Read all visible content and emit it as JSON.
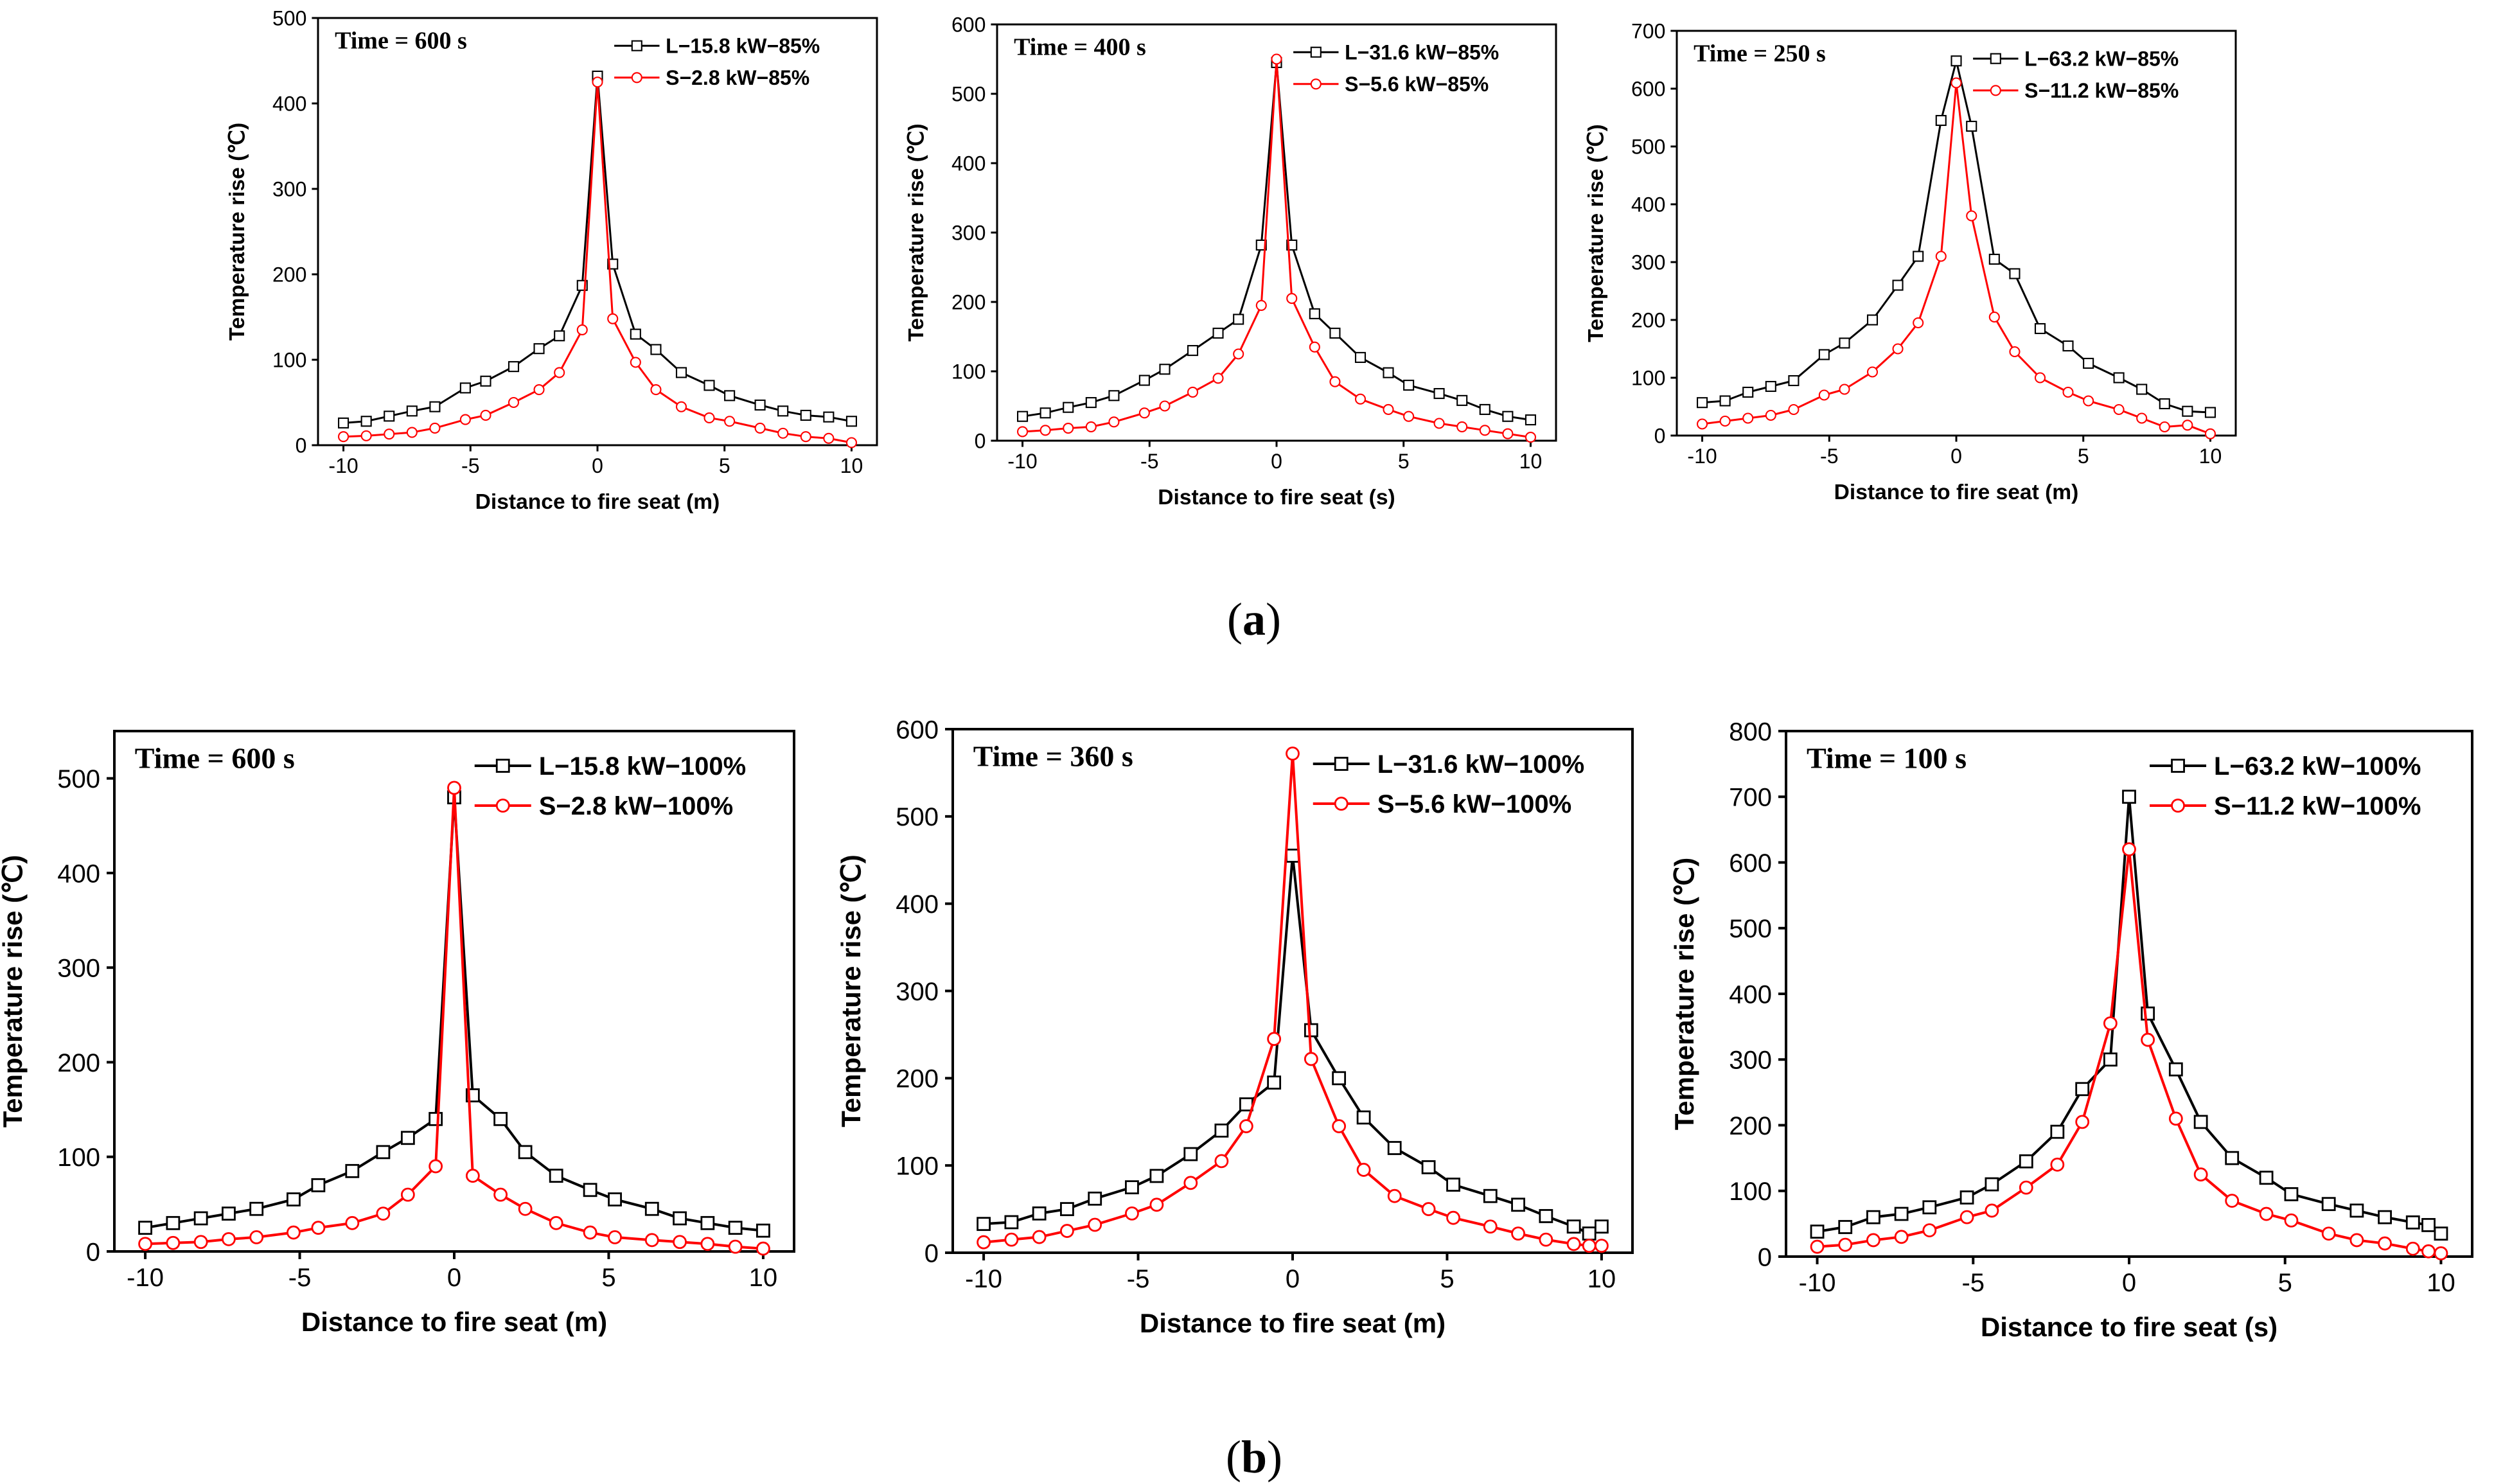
{
  "colors": {
    "series_L": "#000000",
    "series_S": "#ff0000"
  },
  "captions": [
    {
      "text_open": "(",
      "text_letter": "a",
      "text_close": ")"
    },
    {
      "text_open": "(",
      "text_letter": "b",
      "text_close": ")"
    }
  ],
  "chart_data": [
    {
      "type": "line",
      "title": "Time = 600 s",
      "xlabel": "Distance to fire seat (m)",
      "ylabel": "Temperature rise (℃)",
      "xlim": [
        -11,
        11
      ],
      "ylim": [
        0,
        500
      ],
      "xticks": [
        -10,
        -5,
        0,
        5,
        10
      ],
      "yticks": [
        0,
        100,
        200,
        300,
        400,
        500
      ],
      "legend_position": "top-right",
      "series": [
        {
          "name": "L−15.8 kW−85%",
          "marker": "square",
          "x": [
            -10,
            -9.1,
            -8.2,
            -7.3,
            -6.4,
            -5.2,
            -4.4,
            -3.3,
            -2.3,
            -1.5,
            -0.6,
            0,
            0.6,
            1.5,
            2.3,
            3.3,
            4.4,
            5.2,
            6.4,
            7.3,
            8.2,
            9.1,
            10
          ],
          "y": [
            26,
            28,
            34,
            40,
            45,
            67,
            75,
            92,
            113,
            128,
            187,
            432,
            212,
            130,
            112,
            85,
            70,
            58,
            47,
            40,
            35,
            33,
            28
          ]
        },
        {
          "name": "S−2.8 kW−85%",
          "marker": "circle",
          "x": [
            -10,
            -9.1,
            -8.2,
            -7.3,
            -6.4,
            -5.2,
            -4.4,
            -3.3,
            -2.3,
            -1.5,
            -0.6,
            0,
            0.6,
            1.5,
            2.3,
            3.3,
            4.4,
            5.2,
            6.4,
            7.3,
            8.2,
            9.1,
            10
          ],
          "y": [
            10,
            11,
            13,
            15,
            20,
            30,
            35,
            50,
            65,
            85,
            135,
            425,
            148,
            97,
            65,
            45,
            32,
            28,
            20,
            14,
            10,
            8,
            3
          ]
        }
      ]
    },
    {
      "type": "line",
      "title": "Time = 400 s",
      "xlabel": "Distance to fire seat (s)",
      "ylabel": "Temperature rise (℃)",
      "xlim": [
        -11,
        11
      ],
      "ylim": [
        0,
        600
      ],
      "xticks": [
        -10,
        -5,
        0,
        5,
        10
      ],
      "yticks": [
        0,
        100,
        200,
        300,
        400,
        500,
        600
      ],
      "legend_position": "top-right",
      "series": [
        {
          "name": "L−31.6 kW−85%",
          "marker": "square",
          "x": [
            -10,
            -9.1,
            -8.2,
            -7.3,
            -6.4,
            -5.2,
            -4.4,
            -3.3,
            -2.3,
            -1.5,
            -0.6,
            0,
            0.6,
            1.5,
            2.3,
            3.3,
            4.4,
            5.2,
            6.4,
            7.3,
            8.2,
            9.1,
            10
          ],
          "y": [
            35,
            40,
            48,
            55,
            65,
            87,
            103,
            130,
            155,
            175,
            282,
            545,
            282,
            183,
            155,
            120,
            98,
            80,
            68,
            58,
            45,
            35,
            30
          ]
        },
        {
          "name": "S−5.6 kW−85%",
          "marker": "circle",
          "x": [
            -10,
            -9.1,
            -8.2,
            -7.3,
            -6.4,
            -5.2,
            -4.4,
            -3.3,
            -2.3,
            -1.5,
            -0.6,
            0,
            0.6,
            1.5,
            2.3,
            3.3,
            4.4,
            5.2,
            6.4,
            7.3,
            8.2,
            9.1,
            10
          ],
          "y": [
            13,
            15,
            18,
            20,
            27,
            40,
            50,
            70,
            90,
            125,
            195,
            550,
            205,
            135,
            85,
            60,
            45,
            35,
            25,
            20,
            15,
            10,
            5
          ]
        }
      ]
    },
    {
      "type": "line",
      "title": "Time = 250 s",
      "xlabel": "Distance to fire seat (m)",
      "ylabel": "Temperature rise (℃)",
      "xlim": [
        -11,
        11
      ],
      "ylim": [
        0,
        700
      ],
      "xticks": [
        -10,
        -5,
        0,
        5,
        10
      ],
      "yticks": [
        0,
        100,
        200,
        300,
        400,
        500,
        600,
        700
      ],
      "legend_position": "top-right",
      "series": [
        {
          "name": "L−63.2 kW−85%",
          "marker": "square",
          "x": [
            -10,
            -9.1,
            -8.2,
            -7.3,
            -6.4,
            -5.2,
            -4.4,
            -3.3,
            -2.3,
            -1.5,
            -0.6,
            0,
            0.6,
            1.5,
            2.3,
            3.3,
            4.4,
            5.2,
            6.4,
            7.3,
            8.2,
            9.1,
            10
          ],
          "y": [
            57,
            60,
            75,
            85,
            95,
            140,
            160,
            200,
            260,
            310,
            545,
            648,
            535,
            305,
            280,
            185,
            155,
            125,
            100,
            80,
            55,
            42,
            40
          ]
        },
        {
          "name": "S−11.2 kW−85%",
          "marker": "circle",
          "x": [
            -10,
            -9.1,
            -8.2,
            -7.3,
            -6.4,
            -5.2,
            -4.4,
            -3.3,
            -2.3,
            -1.5,
            -0.6,
            0,
            0.6,
            1.5,
            2.3,
            3.3,
            4.4,
            5.2,
            6.4,
            7.3,
            8.2,
            9.1,
            10
          ],
          "y": [
            20,
            25,
            30,
            35,
            45,
            70,
            80,
            110,
            150,
            195,
            310,
            610,
            380,
            205,
            145,
            100,
            75,
            60,
            45,
            30,
            15,
            18,
            3
          ]
        }
      ]
    },
    {
      "type": "line",
      "title": "Time = 600 s",
      "xlabel": "Distance to fire seat (m)",
      "ylabel": "Temperature rise (℃)",
      "xlim": [
        -11,
        11
      ],
      "ylim": [
        0,
        550
      ],
      "xticks": [
        -10,
        -5,
        0,
        5,
        10
      ],
      "yticks": [
        0,
        100,
        200,
        300,
        400,
        500
      ],
      "legend_position": "top-right",
      "series": [
        {
          "name": "L−15.8 kW−100%",
          "marker": "square",
          "x": [
            -10,
            -9.1,
            -8.2,
            -7.3,
            -6.4,
            -5.2,
            -4.4,
            -3.3,
            -2.3,
            -1.5,
            -0.6,
            0,
            0.6,
            1.5,
            2.3,
            3.3,
            4.4,
            5.2,
            6.4,
            7.3,
            8.2,
            9.1,
            10
          ],
          "y": [
            25,
            30,
            35,
            40,
            45,
            55,
            70,
            85,
            105,
            120,
            140,
            480,
            165,
            140,
            105,
            80,
            65,
            55,
            45,
            35,
            30,
            25,
            22
          ]
        },
        {
          "name": "S−2.8 kW−100%",
          "marker": "circle",
          "x": [
            -10,
            -9.1,
            -8.2,
            -7.3,
            -6.4,
            -5.2,
            -4.4,
            -3.3,
            -2.3,
            -1.5,
            -0.6,
            0,
            0.6,
            1.5,
            2.3,
            3.3,
            4.4,
            5.2,
            6.4,
            7.3,
            8.2,
            9.1,
            10
          ],
          "y": [
            8,
            9,
            10,
            13,
            15,
            20,
            25,
            30,
            40,
            60,
            90,
            490,
            80,
            60,
            45,
            30,
            20,
            15,
            12,
            10,
            8,
            5,
            3
          ]
        }
      ]
    },
    {
      "type": "line",
      "title": "Time = 360 s",
      "xlabel": "Distance to fire seat (m)",
      "ylabel": "Temperature rise (℃)",
      "xlim": [
        -11,
        11
      ],
      "ylim": [
        0,
        600
      ],
      "xticks": [
        -10,
        -5,
        0,
        5,
        10
      ],
      "yticks": [
        0,
        100,
        200,
        300,
        400,
        500,
        600
      ],
      "legend_position": "top-right",
      "series": [
        {
          "name": "L−31.6 kW−100%",
          "marker": "square",
          "x": [
            -10,
            -9.1,
            -8.2,
            -7.3,
            -6.4,
            -5.2,
            -4.4,
            -3.3,
            -2.3,
            -1.5,
            -0.6,
            0,
            0.6,
            1.5,
            2.3,
            3.3,
            4.4,
            5.2,
            6.4,
            7.3,
            8.2,
            9.1,
            9.6,
            10
          ],
          "y": [
            33,
            35,
            45,
            50,
            62,
            75,
            88,
            113,
            140,
            170,
            195,
            455,
            255,
            200,
            155,
            120,
            98,
            78,
            65,
            55,
            42,
            30,
            22,
            30
          ]
        },
        {
          "name": "S−5.6 kW−100%",
          "marker": "circle",
          "x": [
            -10,
            -9.1,
            -8.2,
            -7.3,
            -6.4,
            -5.2,
            -4.4,
            -3.3,
            -2.3,
            -1.5,
            -0.6,
            0,
            0.6,
            1.5,
            2.3,
            3.3,
            4.4,
            5.2,
            6.4,
            7.3,
            8.2,
            9.1,
            9.6,
            10
          ],
          "y": [
            12,
            15,
            18,
            25,
            32,
            45,
            55,
            80,
            105,
            145,
            245,
            572,
            222,
            145,
            95,
            65,
            50,
            40,
            30,
            22,
            15,
            10,
            8,
            8
          ]
        }
      ]
    },
    {
      "type": "line",
      "title": "Time = 100 s",
      "xlabel": "Distance to fire seat (s)",
      "ylabel": "Temperature rise (℃)",
      "xlim": [
        -11,
        11
      ],
      "ylim": [
        0,
        800
      ],
      "xticks": [
        -10,
        -5,
        0,
        5,
        10
      ],
      "yticks": [
        0,
        100,
        200,
        300,
        400,
        500,
        600,
        700,
        800
      ],
      "legend_position": "top-right",
      "series": [
        {
          "name": "L−63.2 kW−100%",
          "marker": "square",
          "x": [
            -10,
            -9.1,
            -8.2,
            -7.3,
            -6.4,
            -5.2,
            -4.4,
            -3.3,
            -2.3,
            -1.5,
            -0.6,
            0,
            0.6,
            1.5,
            2.3,
            3.3,
            4.4,
            5.2,
            6.4,
            7.3,
            8.2,
            9.1,
            9.6,
            10
          ],
          "y": [
            38,
            45,
            60,
            65,
            75,
            90,
            110,
            145,
            190,
            255,
            300,
            700,
            370,
            285,
            205,
            150,
            120,
            95,
            80,
            70,
            60,
            52,
            48,
            35
          ]
        },
        {
          "name": "S−11.2 kW−100%",
          "marker": "circle",
          "x": [
            -10,
            -9.1,
            -8.2,
            -7.3,
            -6.4,
            -5.2,
            -4.4,
            -3.3,
            -2.3,
            -1.5,
            -0.6,
            0,
            0.6,
            1.5,
            2.3,
            3.3,
            4.4,
            5.2,
            6.4,
            7.3,
            8.2,
            9.1,
            9.6,
            10
          ],
          "y": [
            15,
            18,
            25,
            30,
            40,
            60,
            70,
            105,
            140,
            205,
            355,
            620,
            330,
            210,
            125,
            85,
            65,
            55,
            35,
            25,
            20,
            12,
            8,
            5
          ]
        }
      ]
    }
  ]
}
